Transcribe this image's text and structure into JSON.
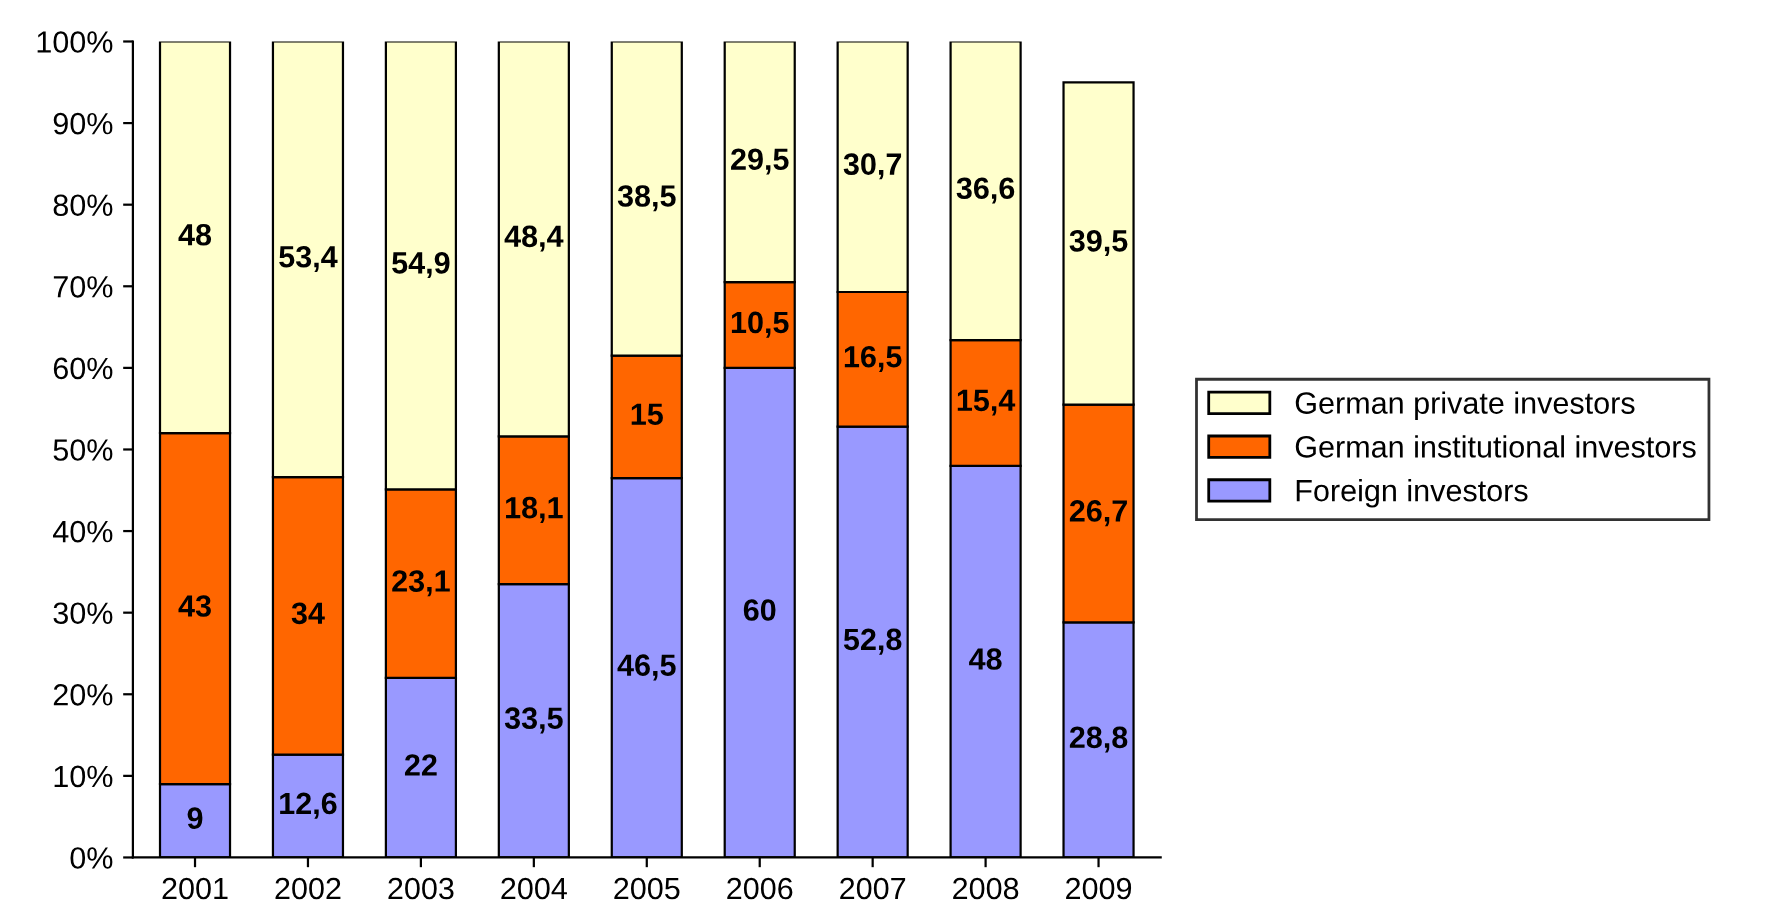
{
  "chart_data": {
    "type": "bar",
    "stacked": true,
    "categories": [
      "2001",
      "2002",
      "2003",
      "2004",
      "2005",
      "2006",
      "2007",
      "2008",
      "2009"
    ],
    "series": [
      {
        "name": "Foreign investors",
        "color": "#9999ff",
        "values": [
          9,
          12.6,
          22,
          33.5,
          46.5,
          60,
          52.8,
          48,
          28.8
        ],
        "value_labels": [
          "9",
          "12,6",
          "22",
          "33,5",
          "46,5",
          "60",
          "52,8",
          "48",
          "28,8"
        ]
      },
      {
        "name": "German institutional investors",
        "color": "#ff6600",
        "values": [
          43,
          34,
          23.1,
          18.1,
          15,
          10.5,
          16.5,
          15.4,
          26.7
        ],
        "value_labels": [
          "43",
          "34",
          "23,1",
          "18,1",
          "15",
          "10,5",
          "16,5",
          "15,4",
          "26,7"
        ]
      },
      {
        "name": "German private investors",
        "color": "#ffffcc",
        "values": [
          48,
          53.4,
          54.9,
          48.4,
          38.5,
          29.5,
          30.7,
          36.6,
          39.5
        ],
        "value_labels": [
          "48",
          "53,4",
          "54,9",
          "48,4",
          "38,5",
          "29,5",
          "30,7",
          "36,6",
          "39,5"
        ]
      }
    ],
    "ylim": [
      0,
      100
    ],
    "yticks": [
      {
        "value": 0,
        "label": "0%"
      },
      {
        "value": 10,
        "label": "10%"
      },
      {
        "value": 20,
        "label": "20%"
      },
      {
        "value": 30,
        "label": "30%"
      },
      {
        "value": 40,
        "label": "40%"
      },
      {
        "value": 50,
        "label": "50%"
      },
      {
        "value": 60,
        "label": "60%"
      },
      {
        "value": 70,
        "label": "70%"
      },
      {
        "value": 80,
        "label": "80%"
      },
      {
        "value": 90,
        "label": "90%"
      },
      {
        "value": 100,
        "label": "100%"
      }
    ],
    "legend": "right"
  }
}
